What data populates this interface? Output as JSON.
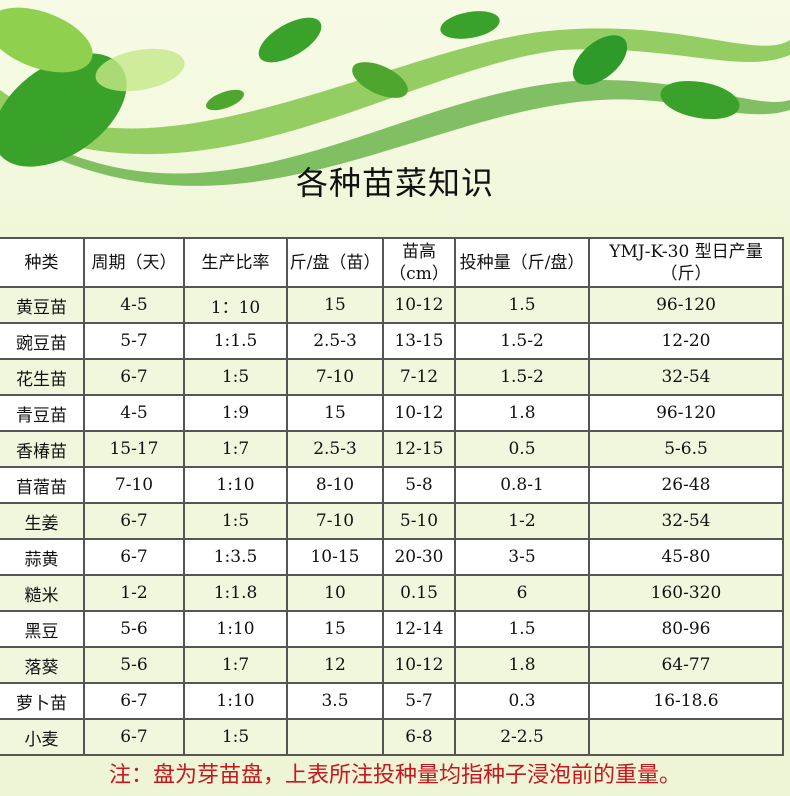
{
  "title": "各种苗菜知识",
  "headers": [
    "种类",
    "周期（天）",
    "生产比率",
    "斤/盘（苗）",
    "苗高（cm）",
    "投种量（斤/盘）",
    "YMJ-K-30 型日产量（斤）"
  ],
  "rows": [
    [
      "黄豆苗",
      "4-5",
      "1：10",
      "15",
      "10-12",
      "1.5",
      "96-120"
    ],
    [
      "豌豆苗",
      "5-7",
      "1:1.5",
      "2.5-3",
      "13-15",
      "1.5-2",
      "12-20"
    ],
    [
      "花生苗",
      "6-7",
      "1:5",
      "7-10",
      "7-12",
      "1.5-2",
      "32-54"
    ],
    [
      "青豆苗",
      "4-5",
      "1:9",
      "15",
      "10-12",
      "1.8",
      "96-120"
    ],
    [
      "香椿苗",
      "15-17",
      "1:7",
      "2.5-3",
      "12-15",
      "0.5",
      "5-6.5"
    ],
    [
      "苜蓿苗",
      "7-10",
      "1:10",
      "8-10",
      "5-8",
      "0.8-1",
      "26-48"
    ],
    [
      "生姜",
      "6-7",
      "1:5",
      "7-10",
      "5-10",
      "1-2",
      "32-54"
    ],
    [
      "蒜黄",
      "6-7",
      "1:3.5",
      "10-15",
      "20-30",
      "3-5",
      "45-80"
    ],
    [
      "糙米",
      "1-2",
      "1:1.8",
      "10",
      "0.15",
      "6",
      "160-320"
    ],
    [
      "黑豆",
      "5-6",
      "1:10",
      "15",
      "12-14",
      "1.5",
      "80-96"
    ],
    [
      "落葵",
      "5-6",
      "1:7",
      "12",
      "10-12",
      "1.8",
      "64-77"
    ],
    [
      "萝卜苗",
      "6-7",
      "1:10",
      "3.5",
      "5-7",
      "0.3",
      "16-18.6"
    ],
    [
      "小麦",
      "6-7",
      "1:5",
      "",
      "6-8",
      "2-2.5",
      ""
    ]
  ],
  "note": "注：盘为芽苗盘，上表所注投种量均指种子浸泡前的重量。",
  "colors": {
    "leaf": "#3aa12a",
    "note": "#c8161d",
    "row_alt": "#f1f7dd"
  }
}
